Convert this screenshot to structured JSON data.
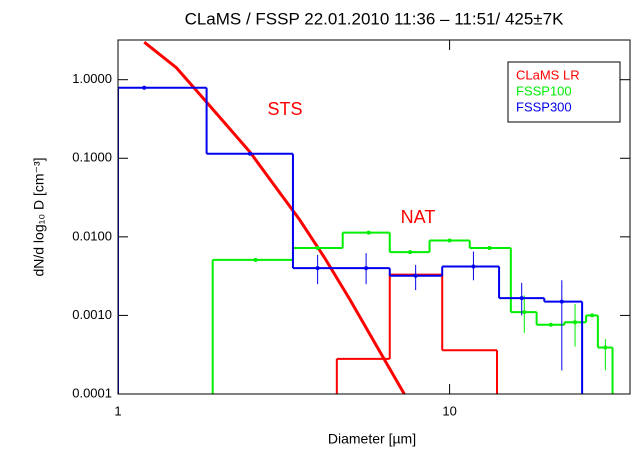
{
  "chart_data": {
    "type": "step",
    "title": "CLaMS / FSSP 22.01.2010 11:36 – 11:51/ 425±7K",
    "x_label": "Diameter [µm]",
    "y_label": "dN/d log₁₀ D [cm⁻³]",
    "xscale": "log",
    "yscale": "log",
    "xlim": [
      1,
      35
    ],
    "ylim": [
      0.0001,
      3.2
    ],
    "xticks": [
      1,
      10
    ],
    "yticks": [
      {
        "value": 0.0001,
        "label": "0.0001"
      },
      {
        "value": 0.001,
        "label": "0.0010"
      },
      {
        "value": 0.01,
        "label": "0.0100"
      },
      {
        "value": 0.1,
        "label": "0.1000"
      },
      {
        "value": 1,
        "label": "1.0000"
      }
    ],
    "legend": "upper right",
    "annotations": [
      {
        "text": "STS",
        "color": "#ff0000"
      },
      {
        "text": "NAT",
        "color": "#ff0000"
      }
    ],
    "series": [
      {
        "name": "CLaMS LR",
        "color": "#ff0000",
        "type": "line",
        "x": [
          1.2,
          1.5,
          1.77,
          2.1,
          2.5,
          3.0,
          3.53,
          4.2,
          5.0,
          6.0,
          7.3
        ],
        "values": [
          3.0,
          1.42,
          0.64,
          0.28,
          0.12,
          0.042,
          0.0165,
          0.0054,
          0.0016,
          0.00042,
          0.0001
        ]
      },
      {
        "color": "#ff0000",
        "type": "step",
        "bins": [
          4.57,
          6.6,
          9.5,
          13.9
        ],
        "values": [
          0.00028,
          0.0033,
          0.00036
        ]
      },
      {
        "name": "FSSP100",
        "color": "#00ee00",
        "type": "step",
        "bins": [
          1.93,
          3.37,
          4.76,
          6.6,
          8.7,
          11.5,
          15.3,
          18.3,
          22.2,
          25.8,
          28.0,
          31.0
        ],
        "values": [
          0.0051,
          0.0072,
          0.0113,
          0.0064,
          0.009,
          0.0072,
          0.0011,
          0.00076,
          0.00082,
          0.001,
          0.00039
        ],
        "points": {
          "x": [
            2.6,
            4.0,
            5.7,
            7.6,
            10.0,
            13.2,
            16.8,
            20.2,
            23.9,
            26.9,
            29.5
          ],
          "y": [
            0.0051,
            0.0072,
            0.0113,
            0.0064,
            0.009,
            0.0072,
            0.0011,
            0.00076,
            0.00082,
            0.001,
            0.00039
          ],
          "low": [
            null,
            null,
            null,
            null,
            null,
            null,
            0.0006,
            null,
            0.0004,
            null,
            0.0002
          ],
          "high": [
            null,
            null,
            null,
            null,
            null,
            null,
            0.0018,
            null,
            0.0014,
            null,
            0.0005
          ]
        }
      },
      {
        "name": "FSSP300",
        "color": "#0000ee",
        "type": "step",
        "bins": [
          1.0,
          1.85,
          3.37,
          6.6,
          9.5,
          14.1,
          19.3,
          25.1
        ],
        "values": [
          0.79,
          0.114,
          0.004,
          0.0032,
          0.0042,
          0.00166,
          0.0015
        ],
        "points": {
          "x": [
            1.2,
            2.5,
            4.0,
            5.6,
            7.9,
            11.8,
            16.5,
            21.8
          ],
          "y": [
            0.79,
            0.114,
            0.004,
            0.004,
            0.0032,
            0.0042,
            0.00166,
            0.0015
          ],
          "low": [
            null,
            null,
            0.0025,
            0.0025,
            0.0021,
            0.0028,
            0.001,
            0.0002
          ],
          "high": [
            null,
            null,
            0.0059,
            0.0062,
            0.0044,
            0.0065,
            0.0026,
            0.0028
          ]
        }
      }
    ]
  }
}
